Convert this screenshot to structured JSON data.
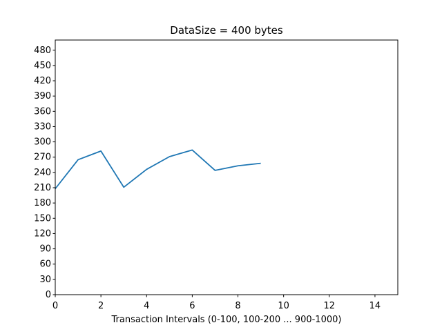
{
  "chart_data": {
    "type": "line",
    "title": "DataSize = 400 bytes",
    "xlabel": "Transaction Intervals (0-100, 100-200 ... 900-1000)",
    "ylabel": "",
    "xlim": [
      0,
      15
    ],
    "ylim": [
      0,
      500
    ],
    "x_ticks": [
      0,
      2,
      4,
      6,
      8,
      10,
      12,
      14
    ],
    "y_ticks": [
      0,
      30,
      60,
      90,
      120,
      150,
      180,
      210,
      240,
      270,
      300,
      330,
      360,
      390,
      420,
      450,
      480
    ],
    "grid": false,
    "series": [
      {
        "name": "",
        "color": "#1f77b4",
        "x": [
          0,
          1,
          2,
          3,
          4,
          5,
          6,
          7,
          8,
          9
        ],
        "y": [
          208,
          265,
          282,
          211,
          246,
          271,
          284,
          244,
          253,
          258
        ]
      }
    ]
  }
}
